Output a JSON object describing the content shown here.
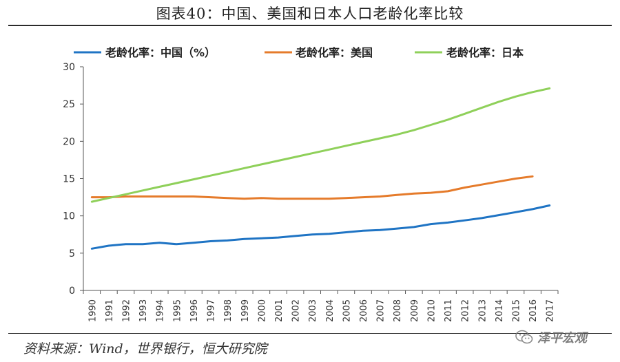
{
  "header": {
    "title": "图表40：中国、美国和日本人口老龄化率比较"
  },
  "footer": {
    "source": "资料来源：Wind，世界银行，恒大研究院",
    "watermark_text": "泽平宏观",
    "watermark_icon": "wechat-icon"
  },
  "chart_data": {
    "type": "line",
    "title": "",
    "xlabel": "",
    "ylabel": "",
    "ylim": [
      0,
      30
    ],
    "yticks": [
      0,
      5,
      10,
      15,
      20,
      25,
      30
    ],
    "grid": false,
    "legend_position": "top",
    "x": [
      "1990",
      "1991",
      "1992",
      "1993",
      "1994",
      "1995",
      "1996",
      "1997",
      "1998",
      "1999",
      "2000",
      "2001",
      "2002",
      "2003",
      "2004",
      "2005",
      "2006",
      "2007",
      "2008",
      "2009",
      "2010",
      "2011",
      "2012",
      "2013",
      "2014",
      "2015",
      "2016",
      "2017"
    ],
    "series": [
      {
        "name": "老龄化率：中国（%）",
        "color": "#1f74c4",
        "values": [
          5.6,
          6.0,
          6.2,
          6.2,
          6.4,
          6.2,
          6.4,
          6.6,
          6.7,
          6.9,
          7.0,
          7.1,
          7.3,
          7.5,
          7.6,
          7.8,
          8.0,
          8.1,
          8.3,
          8.5,
          8.9,
          9.1,
          9.4,
          9.7,
          10.1,
          10.5,
          10.9,
          11.4
        ]
      },
      {
        "name": "老龄化率：美国",
        "color": "#e57b2b",
        "values": [
          12.5,
          12.5,
          12.6,
          12.6,
          12.6,
          12.6,
          12.6,
          12.5,
          12.4,
          12.3,
          12.4,
          12.3,
          12.3,
          12.3,
          12.3,
          12.4,
          12.5,
          12.6,
          12.8,
          13.0,
          13.1,
          13.3,
          13.8,
          14.2,
          14.6,
          15.0,
          15.3,
          null
        ]
      },
      {
        "name": "老龄化率：日本",
        "color": "#8fd05a",
        "values": [
          11.9,
          12.4,
          12.9,
          13.4,
          13.9,
          14.4,
          14.9,
          15.4,
          15.9,
          16.4,
          16.9,
          17.4,
          17.9,
          18.4,
          18.9,
          19.4,
          19.9,
          20.4,
          20.9,
          21.5,
          22.2,
          22.9,
          23.7,
          24.5,
          25.3,
          26.0,
          26.6,
          27.1
        ]
      }
    ]
  }
}
